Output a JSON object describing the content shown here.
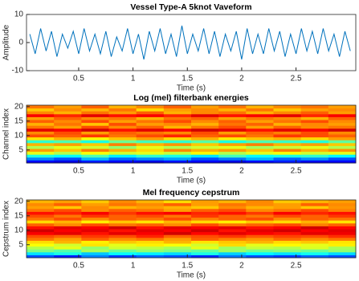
{
  "chart_data": [
    {
      "type": "line",
      "title": "Vessel Type-A 5knot Vaveform",
      "xlabel": "Time (s)",
      "ylabel": "Amplitude",
      "color": "#0072bd",
      "xlim": [
        0.02,
        3.05
      ],
      "ylim": [
        -10,
        10
      ],
      "xticks": [
        0.5,
        1,
        1.5,
        2,
        2.5
      ],
      "yticks": [
        -10,
        0,
        10
      ],
      "x": [
        0.05,
        0.1,
        0.15,
        0.2,
        0.25,
        0.3,
        0.35,
        0.4,
        0.45,
        0.5,
        0.55,
        0.6,
        0.65,
        0.7,
        0.75,
        0.8,
        0.85,
        0.9,
        0.95,
        1,
        1.05,
        1.1,
        1.15,
        1.2,
        1.25,
        1.3,
        1.35,
        1.4,
        1.45,
        1.5,
        1.55,
        1.6,
        1.65,
        1.7,
        1.75,
        1.8,
        1.85,
        1.9,
        1.95,
        2,
        2.05,
        2.1,
        2.15,
        2.2,
        2.25,
        2.3,
        2.35,
        2.4,
        2.45,
        2.5,
        2.55,
        2.6,
        2.65,
        2.7,
        2.75,
        2.8,
        2.85,
        2.9,
        2.95,
        3
      ],
      "values": [
        3,
        -4,
        5,
        -3,
        4,
        -5,
        3,
        -2,
        4,
        -4,
        5,
        -3,
        3,
        -4,
        4,
        -5,
        2,
        -3,
        5,
        -4,
        3,
        -6,
        4,
        -3,
        5,
        -4,
        3,
        -5,
        6,
        -4,
        3,
        -3,
        5,
        -4,
        4,
        -5,
        3,
        -3,
        4,
        -6,
        5,
        -4,
        3,
        -4,
        5,
        -3,
        4,
        -5,
        3,
        -4,
        5,
        -3,
        4,
        -4,
        5,
        -3,
        3,
        -5,
        4,
        -3
      ]
    },
    {
      "type": "heatmap",
      "title": "Log (mel) filterbank energies",
      "xlabel": "Time (s)",
      "ylabel": "Channel index",
      "colormap": "jet",
      "clim": [
        0,
        1
      ],
      "xlim": [
        0.02,
        3.05
      ],
      "ylim": [
        0.5,
        20.5
      ],
      "xticks": [
        0.5,
        1,
        1.5,
        2,
        2.5
      ],
      "yticks": [
        5,
        10,
        15,
        20
      ],
      "z": [
        [
          0.12,
          0.1,
          0.15,
          0.12,
          0.1,
          0.14,
          0.12,
          0.1,
          0.13,
          0.15,
          0.11,
          0.12
        ],
        [
          0.25,
          0.2,
          0.3,
          0.22,
          0.25,
          0.28,
          0.2,
          0.24,
          0.3,
          0.22,
          0.26,
          0.2
        ],
        [
          0.4,
          0.38,
          0.45,
          0.36,
          0.42,
          0.4,
          0.35,
          0.44,
          0.38,
          0.4,
          0.42,
          0.37
        ],
        [
          0.6,
          0.55,
          0.62,
          0.58,
          0.6,
          0.57,
          0.63,
          0.55,
          0.6,
          0.62,
          0.58,
          0.6
        ],
        [
          0.72,
          0.68,
          0.75,
          0.7,
          0.66,
          0.74,
          0.7,
          0.72,
          0.68,
          0.75,
          0.7,
          0.73
        ],
        [
          0.55,
          0.6,
          0.58,
          0.52,
          0.6,
          0.55,
          0.58,
          0.6,
          0.54,
          0.57,
          0.6,
          0.55
        ],
        [
          0.7,
          0.72,
          0.68,
          0.75,
          0.7,
          0.73,
          0.68,
          0.72,
          0.75,
          0.7,
          0.72,
          0.68
        ],
        [
          0.42,
          0.45,
          0.4,
          0.48,
          0.44,
          0.42,
          0.46,
          0.4,
          0.45,
          0.43,
          0.41,
          0.47
        ],
        [
          0.65,
          0.7,
          0.62,
          0.68,
          0.72,
          0.66,
          0.7,
          0.64,
          0.68,
          0.7,
          0.66,
          0.72
        ],
        [
          0.8,
          0.78,
          0.82,
          0.76,
          0.8,
          0.84,
          0.78,
          0.8,
          0.76,
          0.82,
          0.8,
          0.78
        ],
        [
          0.74,
          0.8,
          0.72,
          0.78,
          0.76,
          0.74,
          0.8,
          0.72,
          0.78,
          0.75,
          0.8,
          0.74
        ],
        [
          0.9,
          0.88,
          0.92,
          0.86,
          0.9,
          0.88,
          0.92,
          0.9,
          0.86,
          0.9,
          0.88,
          0.92
        ],
        [
          0.76,
          0.72,
          0.8,
          0.74,
          0.78,
          0.7,
          0.76,
          0.8,
          0.72,
          0.78,
          0.74,
          0.76
        ],
        [
          0.7,
          0.76,
          0.68,
          0.8,
          0.72,
          0.74,
          0.7,
          0.76,
          0.78,
          0.7,
          0.74,
          0.72
        ],
        [
          0.78,
          0.74,
          0.8,
          0.72,
          0.76,
          0.8,
          0.74,
          0.78,
          0.72,
          0.76,
          0.8,
          0.74
        ],
        [
          0.72,
          0.78,
          0.74,
          0.76,
          0.7,
          0.76,
          0.78,
          0.72,
          0.76,
          0.74,
          0.7,
          0.78
        ],
        [
          0.88,
          0.84,
          0.9,
          0.86,
          0.88,
          0.84,
          0.9,
          0.86,
          0.88,
          0.9,
          0.84,
          0.88
        ],
        [
          0.74,
          0.7,
          0.76,
          0.72,
          0.78,
          0.7,
          0.74,
          0.76,
          0.7,
          0.74,
          0.78,
          0.72
        ],
        [
          0.68,
          0.74,
          0.7,
          0.76,
          0.66,
          0.72,
          0.74,
          0.7,
          0.76,
          0.68,
          0.72,
          0.74
        ],
        [
          0.76,
          0.72,
          0.78,
          0.7,
          0.74,
          0.78,
          0.72,
          0.76,
          0.7,
          0.74,
          0.76,
          0.72
        ]
      ]
    },
    {
      "type": "heatmap",
      "title": "Mel frequency cepstrum",
      "xlabel": "Time (s)",
      "ylabel": "Cepstrum index",
      "colormap": "jet",
      "clim": [
        0,
        1
      ],
      "xlim": [
        0.02,
        3.05
      ],
      "ylim": [
        0.5,
        20.5
      ],
      "xticks": [
        0.5,
        1,
        1.5,
        2,
        2.5
      ],
      "yticks": [
        5,
        10,
        15,
        20
      ],
      "z": [
        [
          0.2,
          0.15,
          0.25,
          0.18,
          0.22,
          0.2,
          0.16,
          0.24,
          0.2,
          0.18,
          0.22,
          0.2
        ],
        [
          0.35,
          0.4,
          0.32,
          0.38,
          0.36,
          0.34,
          0.4,
          0.33,
          0.37,
          0.35,
          0.39,
          0.34
        ],
        [
          0.5,
          0.46,
          0.54,
          0.48,
          0.52,
          0.5,
          0.47,
          0.53,
          0.49,
          0.51,
          0.48,
          0.52
        ],
        [
          0.55,
          0.6,
          0.52,
          0.58,
          0.56,
          0.54,
          0.6,
          0.53,
          0.57,
          0.55,
          0.59,
          0.54
        ],
        [
          0.62,
          0.58,
          0.65,
          0.6,
          0.64,
          0.62,
          0.58,
          0.66,
          0.6,
          0.63,
          0.6,
          0.64
        ],
        [
          0.66,
          0.7,
          0.64,
          0.68,
          0.66,
          0.7,
          0.65,
          0.68,
          0.7,
          0.66,
          0.68,
          0.65
        ],
        [
          0.76,
          0.72,
          0.78,
          0.74,
          0.76,
          0.72,
          0.78,
          0.75,
          0.73,
          0.77,
          0.74,
          0.76
        ],
        [
          0.8,
          0.78,
          0.82,
          0.8,
          0.84,
          0.78,
          0.8,
          0.82,
          0.79,
          0.81,
          0.8,
          0.83
        ],
        [
          0.88,
          0.9,
          0.86,
          0.9,
          0.88,
          0.92,
          0.87,
          0.9,
          0.88,
          0.86,
          0.9,
          0.89
        ],
        [
          0.92,
          0.88,
          0.9,
          0.86,
          0.9,
          0.88,
          0.92,
          0.86,
          0.9,
          0.92,
          0.88,
          0.9
        ],
        [
          0.86,
          0.9,
          0.88,
          0.92,
          0.86,
          0.9,
          0.88,
          0.9,
          0.86,
          0.88,
          0.92,
          0.87
        ],
        [
          0.78,
          0.74,
          0.8,
          0.76,
          0.78,
          0.74,
          0.8,
          0.76,
          0.78,
          0.8,
          0.75,
          0.78
        ],
        [
          0.66,
          0.7,
          0.64,
          0.68,
          0.65,
          0.7,
          0.66,
          0.64,
          0.68,
          0.66,
          0.7,
          0.65
        ],
        [
          0.76,
          0.8,
          0.74,
          0.78,
          0.76,
          0.8,
          0.75,
          0.78,
          0.8,
          0.74,
          0.78,
          0.76
        ],
        [
          0.8,
          0.76,
          0.82,
          0.78,
          0.8,
          0.76,
          0.82,
          0.78,
          0.76,
          0.8,
          0.78,
          0.82
        ],
        [
          0.86,
          0.84,
          0.88,
          0.82,
          0.86,
          0.88,
          0.84,
          0.86,
          0.82,
          0.88,
          0.84,
          0.86
        ],
        [
          0.76,
          0.8,
          0.74,
          0.78,
          0.76,
          0.72,
          0.78,
          0.8,
          0.74,
          0.76,
          0.8,
          0.75
        ],
        [
          0.72,
          0.68,
          0.74,
          0.7,
          0.72,
          0.7,
          0.68,
          0.74,
          0.7,
          0.72,
          0.68,
          0.73
        ],
        [
          0.74,
          0.78,
          0.72,
          0.76,
          0.74,
          0.78,
          0.72,
          0.76,
          0.74,
          0.72,
          0.78,
          0.74
        ],
        [
          0.7,
          0.72,
          0.68,
          0.74,
          0.7,
          0.66,
          0.72,
          0.7,
          0.74,
          0.68,
          0.7,
          0.72
        ]
      ]
    }
  ]
}
